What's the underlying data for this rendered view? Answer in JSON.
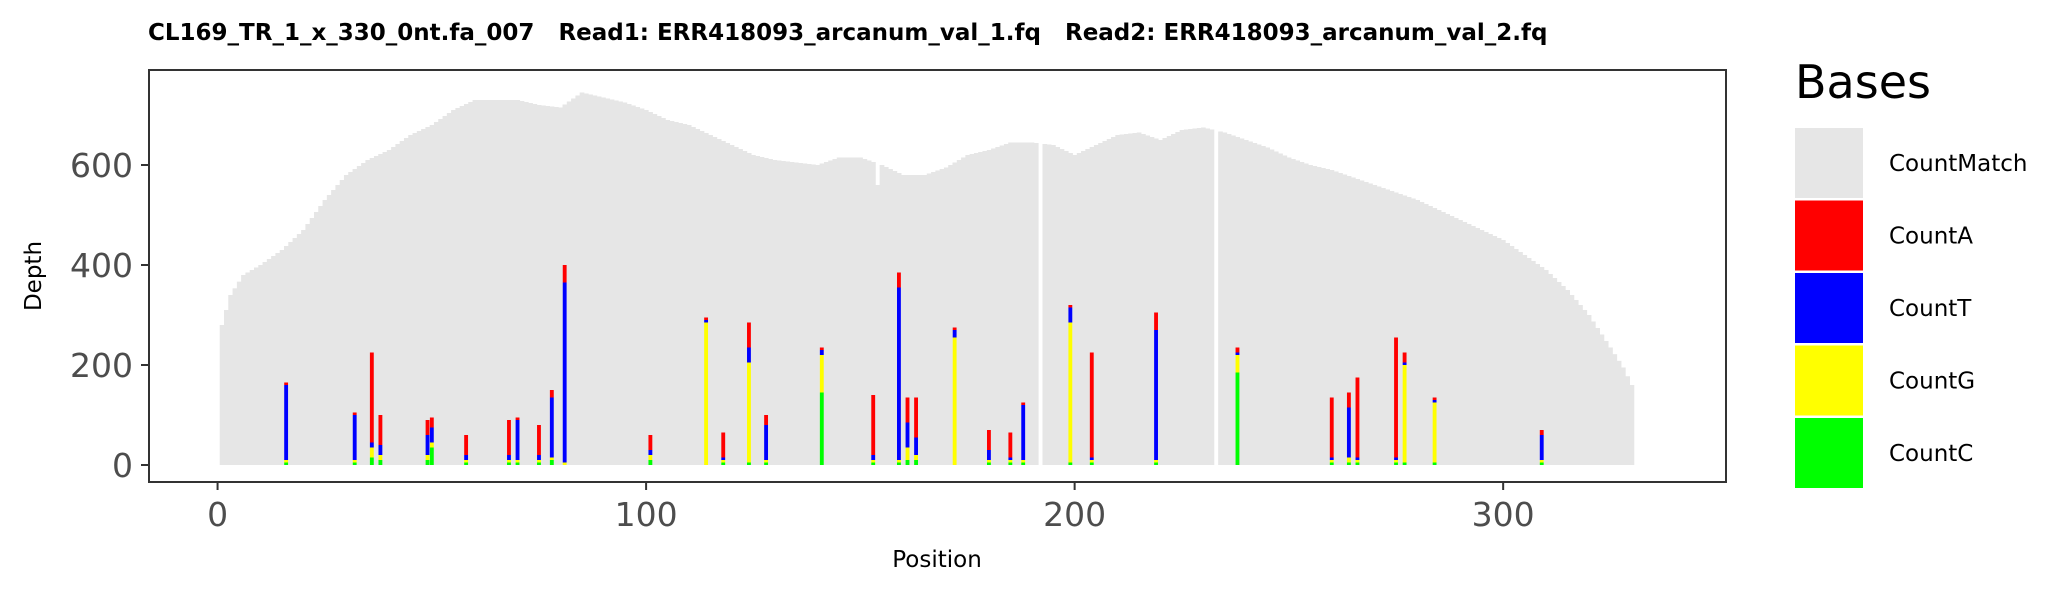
{
  "chart_data": {
    "type": "bar",
    "stacked": true,
    "title": "CL169_TR_1_x_330_0nt.fa_007   Read1: ERR418093_arcanum_val_1.fq   Read2: ERR418093_arcanum_val_2.fq",
    "xlabel": "Position",
    "ylabel": "Depth",
    "xlim": [
      -16,
      352
    ],
    "ylim": [
      -34,
      790
    ],
    "xticks": [
      0,
      100,
      200,
      300
    ],
    "yticks": [
      0,
      200,
      400,
      600
    ],
    "grid": false,
    "legend": {
      "title": "Bases",
      "position": "right",
      "entries": [
        "CountMatch",
        "CountA",
        "CountT",
        "CountG",
        "CountC"
      ]
    },
    "colors": {
      "CountMatch": "#e6e6e6",
      "CountA": "#ff0000",
      "CountT": "#0000ff",
      "CountG": "#ffff00",
      "CountC": "#00ff00"
    },
    "coverage_profile": [
      [
        1,
        280
      ],
      [
        3,
        340
      ],
      [
        6,
        380
      ],
      [
        10,
        400
      ],
      [
        15,
        430
      ],
      [
        20,
        470
      ],
      [
        25,
        530
      ],
      [
        30,
        580
      ],
      [
        35,
        610
      ],
      [
        40,
        630
      ],
      [
        45,
        660
      ],
      [
        50,
        680
      ],
      [
        55,
        710
      ],
      [
        60,
        730
      ],
      [
        65,
        730
      ],
      [
        70,
        730
      ],
      [
        75,
        720
      ],
      [
        80,
        715
      ],
      [
        85,
        745
      ],
      [
        90,
        735
      ],
      [
        95,
        725
      ],
      [
        100,
        710
      ],
      [
        105,
        690
      ],
      [
        110,
        680
      ],
      [
        115,
        660
      ],
      [
        120,
        640
      ],
      [
        125,
        620
      ],
      [
        130,
        610
      ],
      [
        135,
        605
      ],
      [
        140,
        600
      ],
      [
        145,
        615
      ],
      [
        150,
        615
      ],
      [
        155,
        600
      ],
      [
        160,
        580
      ],
      [
        165,
        580
      ],
      [
        170,
        595
      ],
      [
        175,
        620
      ],
      [
        180,
        630
      ],
      [
        185,
        645
      ],
      [
        190,
        645
      ],
      [
        195,
        640
      ],
      [
        200,
        620
      ],
      [
        205,
        640
      ],
      [
        210,
        660
      ],
      [
        215,
        665
      ],
      [
        220,
        650
      ],
      [
        225,
        670
      ],
      [
        230,
        675
      ],
      [
        235,
        665
      ],
      [
        240,
        650
      ],
      [
        245,
        635
      ],
      [
        250,
        615
      ],
      [
        255,
        600
      ],
      [
        260,
        590
      ],
      [
        265,
        575
      ],
      [
        270,
        560
      ],
      [
        275,
        545
      ],
      [
        280,
        530
      ],
      [
        285,
        510
      ],
      [
        290,
        490
      ],
      [
        295,
        470
      ],
      [
        300,
        450
      ],
      [
        305,
        420
      ],
      [
        310,
        390
      ],
      [
        315,
        350
      ],
      [
        320,
        300
      ],
      [
        325,
        235
      ],
      [
        328,
        195
      ],
      [
        330,
        160
      ]
    ],
    "coverage_dips": [
      [
        154,
        560
      ],
      [
        192,
        0
      ],
      [
        233,
        0
      ]
    ],
    "mismatch_bars": [
      {
        "x": 16,
        "A": 5,
        "T": 150,
        "G": 5,
        "C": 5
      },
      {
        "x": 32,
        "A": 5,
        "T": 90,
        "G": 5,
        "C": 5
      },
      {
        "x": 36,
        "A": 180,
        "T": 10,
        "G": 20,
        "C": 15
      },
      {
        "x": 38,
        "A": 60,
        "T": 20,
        "G": 10,
        "C": 10
      },
      {
        "x": 49,
        "A": 30,
        "T": 40,
        "G": 10,
        "C": 10
      },
      {
        "x": 50,
        "A": 20,
        "T": 30,
        "G": 10,
        "C": 35
      },
      {
        "x": 58,
        "A": 40,
        "T": 10,
        "G": 5,
        "C": 5
      },
      {
        "x": 68,
        "A": 70,
        "T": 10,
        "G": 5,
        "C": 5
      },
      {
        "x": 70,
        "A": 5,
        "T": 80,
        "G": 5,
        "C": 5
      },
      {
        "x": 75,
        "A": 60,
        "T": 10,
        "G": 5,
        "C": 5
      },
      {
        "x": 78,
        "A": 15,
        "T": 120,
        "G": 5,
        "C": 10
      },
      {
        "x": 81,
        "A": 35,
        "T": 360,
        "G": 5,
        "C": 0
      },
      {
        "x": 101,
        "A": 30,
        "T": 10,
        "G": 10,
        "C": 10
      },
      {
        "x": 114,
        "A": 5,
        "T": 5,
        "G": 285,
        "C": 0
      },
      {
        "x": 118,
        "A": 50,
        "T": 5,
        "G": 5,
        "C": 5
      },
      {
        "x": 124,
        "A": 50,
        "T": 30,
        "G": 200,
        "C": 5
      },
      {
        "x": 128,
        "A": 20,
        "T": 70,
        "G": 5,
        "C": 5
      },
      {
        "x": 141,
        "A": 5,
        "T": 10,
        "G": 75,
        "C": 145
      },
      {
        "x": 153,
        "A": 120,
        "T": 10,
        "G": 5,
        "C": 5
      },
      {
        "x": 159,
        "A": 30,
        "T": 345,
        "G": 5,
        "C": 5
      },
      {
        "x": 161,
        "A": 50,
        "T": 50,
        "G": 25,
        "C": 10
      },
      {
        "x": 163,
        "A": 80,
        "T": 35,
        "G": 10,
        "C": 10
      },
      {
        "x": 172,
        "A": 5,
        "T": 15,
        "G": 255,
        "C": 0
      },
      {
        "x": 180,
        "A": 40,
        "T": 20,
        "G": 5,
        "C": 5
      },
      {
        "x": 185,
        "A": 50,
        "T": 5,
        "G": 5,
        "C": 5
      },
      {
        "x": 188,
        "A": 5,
        "T": 110,
        "G": 5,
        "C": 5
      },
      {
        "x": 199,
        "A": 5,
        "T": 30,
        "G": 280,
        "C": 5
      },
      {
        "x": 204,
        "A": 210,
        "T": 5,
        "G": 5,
        "C": 5
      },
      {
        "x": 219,
        "A": 35,
        "T": 260,
        "G": 5,
        "C": 5
      },
      {
        "x": 238,
        "A": 10,
        "T": 5,
        "G": 35,
        "C": 185
      },
      {
        "x": 260,
        "A": 120,
        "T": 5,
        "G": 5,
        "C": 5
      },
      {
        "x": 264,
        "A": 30,
        "T": 100,
        "G": 10,
        "C": 5
      },
      {
        "x": 266,
        "A": 160,
        "T": 5,
        "G": 5,
        "C": 5
      },
      {
        "x": 275,
        "A": 240,
        "T": 5,
        "G": 5,
        "C": 5
      },
      {
        "x": 277,
        "A": 20,
        "T": 5,
        "G": 195,
        "C": 5
      },
      {
        "x": 284,
        "A": 5,
        "T": 5,
        "G": 120,
        "C": 5
      },
      {
        "x": 309,
        "A": 10,
        "T": 50,
        "G": 5,
        "C": 5
      }
    ]
  }
}
